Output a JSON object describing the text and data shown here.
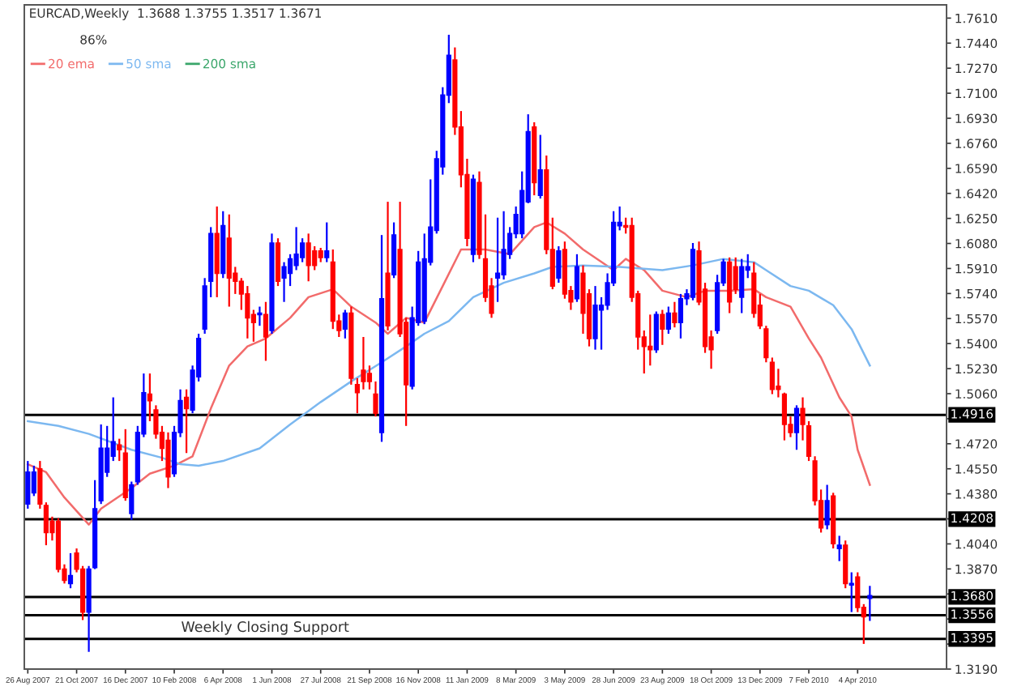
{
  "chart_data": {
    "type": "candlestick",
    "annotations": [
      "EURCAD,Weekly  1.3688 1.3755 1.3517 1.3671",
      "86%",
      "Weekly Closing Support"
    ],
    "x": [
      "2007-08-26",
      "2007-09-02",
      "2007-09-09",
      "2007-09-16",
      "2007-09-23",
      "2007-09-30",
      "2007-10-07",
      "2007-10-14",
      "2007-10-21",
      "2007-10-28",
      "2007-11-04",
      "2007-11-11",
      "2007-11-18",
      "2007-11-25",
      "2007-12-02",
      "2007-12-09",
      "2007-12-16",
      "2007-12-23",
      "2007-12-30",
      "2008-01-06",
      "2008-01-13",
      "2008-01-20",
      "2008-01-27",
      "2008-02-03",
      "2008-02-10",
      "2008-02-17",
      "2008-02-24",
      "2008-03-02",
      "2008-03-09",
      "2008-03-16",
      "2008-03-23",
      "2008-03-30",
      "2008-04-06",
      "2008-04-13",
      "2008-04-20",
      "2008-04-27",
      "2008-05-04",
      "2008-05-11",
      "2008-05-18",
      "2008-05-25",
      "2008-06-01",
      "2008-06-08",
      "2008-06-15",
      "2008-06-22",
      "2008-06-29",
      "2008-07-06",
      "2008-07-13",
      "2008-07-20",
      "2008-07-27",
      "2008-08-03",
      "2008-08-10",
      "2008-08-17",
      "2008-08-24",
      "2008-08-31",
      "2008-09-07",
      "2008-09-14",
      "2008-09-21",
      "2008-09-28",
      "2008-10-05",
      "2008-10-12",
      "2008-10-19",
      "2008-10-26",
      "2008-11-02",
      "2008-11-09",
      "2008-11-16",
      "2008-11-23",
      "2008-11-30",
      "2008-12-07",
      "2008-12-14",
      "2008-12-21",
      "2008-12-28",
      "2009-01-04",
      "2009-01-11",
      "2009-01-18",
      "2009-01-25",
      "2009-02-01",
      "2009-02-08",
      "2009-02-15",
      "2009-02-22",
      "2009-03-01",
      "2009-03-08",
      "2009-03-15",
      "2009-03-22",
      "2009-03-29",
      "2009-04-05",
      "2009-04-12",
      "2009-04-19",
      "2009-04-26",
      "2009-05-03",
      "2009-05-10",
      "2009-05-17",
      "2009-05-24",
      "2009-05-31",
      "2009-06-07",
      "2009-06-14",
      "2009-06-21",
      "2009-06-28",
      "2009-07-05",
      "2009-07-12",
      "2009-07-19",
      "2009-07-26",
      "2009-08-02",
      "2009-08-09",
      "2009-08-16",
      "2009-08-23",
      "2009-08-30",
      "2009-09-06",
      "2009-09-13",
      "2009-09-20",
      "2009-09-27",
      "2009-10-04",
      "2009-10-11",
      "2009-10-18",
      "2009-10-25",
      "2009-11-01",
      "2009-11-08",
      "2009-11-15",
      "2009-11-22",
      "2009-11-29",
      "2009-12-06",
      "2009-12-13",
      "2009-12-20",
      "2009-12-27",
      "2010-01-03",
      "2010-01-10",
      "2010-01-17",
      "2010-01-24",
      "2010-01-31",
      "2010-02-07",
      "2010-02-14",
      "2010-02-21",
      "2010-02-28",
      "2010-03-07",
      "2010-03-14",
      "2010-03-21",
      "2010-03-28",
      "2010-04-04",
      "2010-04-11",
      "2010-04-18"
    ],
    "ohlc": [
      [
        1.4311,
        1.4603,
        1.4279,
        1.4527
      ],
      [
        1.4387,
        1.4571,
        1.4365,
        1.4527
      ],
      [
        1.4549,
        1.4603,
        1.4279,
        1.4311
      ],
      [
        1.4301,
        1.4322,
        1.4031,
        1.4117
      ],
      [
        1.4193,
        1.4225,
        1.4063,
        1.4117
      ],
      [
        1.4193,
        1.4215,
        1.3847,
        1.3869
      ],
      [
        1.3869,
        1.3901,
        1.3771,
        1.3793
      ],
      [
        1.3771,
        1.3977,
        1.3739,
        1.3825
      ],
      [
        1.3977,
        1.4009,
        1.3847,
        1.3869
      ],
      [
        1.3869,
        1.389,
        1.3523,
        1.3577
      ],
      [
        1.3577,
        1.389,
        1.3307,
        1.3869
      ],
      [
        1.3879,
        1.4473,
        1.3869,
        1.4279
      ],
      [
        1.4333,
        1.4851,
        1.4311,
        1.4689
      ],
      [
        1.4527,
        1.4841,
        1.4495,
        1.4689
      ],
      [
        1.4635,
        1.5035,
        1.4603,
        1.4733
      ],
      [
        1.4711,
        1.4754,
        1.4603,
        1.4679
      ],
      [
        1.4657,
        1.4819,
        1.4333,
        1.4355
      ],
      [
        1.4247,
        1.4463,
        1.4203,
        1.4441
      ],
      [
        1.4463,
        1.4841,
        1.4441,
        1.4797
      ],
      [
        1.4787,
        1.5197,
        1.4765,
        1.5067
      ],
      [
        1.5057,
        1.5197,
        1.4873,
        1.5013
      ],
      [
        1.4949,
        1.4981,
        1.4754,
        1.4787
      ],
      [
        1.4797,
        1.4841,
        1.4603,
        1.4689
      ],
      [
        1.4743,
        1.4797,
        1.4419,
        1.4495
      ],
      [
        1.4517,
        1.4841,
        1.4495,
        1.4797
      ],
      [
        1.4797,
        1.5089,
        1.4765,
        1.5013
      ],
      [
        1.5035,
        1.5089,
        1.4657,
        1.4959
      ],
      [
        1.4949,
        1.5251,
        1.4927,
        1.5219
      ],
      [
        1.5175,
        1.5467,
        1.5143,
        1.5435
      ],
      [
        1.5499,
        1.5845,
        1.5467,
        1.5791
      ],
      [
        1.5823,
        1.6191,
        1.5715,
        1.6147
      ],
      [
        1.6147,
        1.6331,
        1.5715,
        1.5877
      ],
      [
        1.5877,
        1.6299,
        1.5845,
        1.6201
      ],
      [
        1.6115,
        1.6277,
        1.5651,
        1.5845
      ],
      [
        1.5877,
        1.5921,
        1.5737,
        1.5823
      ],
      [
        1.5823,
        1.5845,
        1.5629,
        1.5737
      ],
      [
        1.5737,
        1.5791,
        1.5435,
        1.5575
      ],
      [
        1.5597,
        1.5629,
        1.5413,
        1.5543
      ],
      [
        1.5597,
        1.5651,
        1.5521,
        1.5607
      ],
      [
        1.5597,
        1.5683,
        1.5283,
        1.5445
      ],
      [
        1.5489,
        1.6147,
        1.5467,
        1.6083
      ],
      [
        1.6083,
        1.6115,
        1.5791,
        1.5823
      ],
      [
        1.5845,
        1.5953,
        1.5683,
        1.5921
      ],
      [
        1.5877,
        1.6007,
        1.5791,
        1.5975
      ],
      [
        1.5931,
        1.6191,
        1.5899,
        1.6007
      ],
      [
        1.5985,
        1.6115,
        1.5953,
        1.6083
      ],
      [
        1.6083,
        1.6147,
        1.5823,
        1.5931
      ],
      [
        1.6029,
        1.6061,
        1.5899,
        1.5931
      ],
      [
        1.6029,
        1.605,
        1.5953,
        1.5985
      ],
      [
        1.5985,
        1.6223,
        1.5953,
        1.6029
      ],
      [
        1.5953,
        1.6039,
        1.5499,
        1.5553
      ],
      [
        1.5553,
        1.5597,
        1.5445,
        1.5489
      ],
      [
        1.5499,
        1.5629,
        1.5435,
        1.5607
      ],
      [
        1.5607,
        1.5651,
        1.5121,
        1.5165
      ],
      [
        1.5121,
        1.5165,
        1.4927,
        1.5067
      ],
      [
        1.5219,
        1.5445,
        1.5089,
        1.5143
      ],
      [
        1.5197,
        1.5251,
        1.5089,
        1.5143
      ],
      [
        1.5057,
        1.5143,
        1.4905,
        1.4927
      ],
      [
        1.4797,
        1.6137,
        1.4733,
        1.5705
      ],
      [
        1.5877,
        1.6363,
        1.5489,
        1.5521
      ],
      [
        1.5867,
        1.6223,
        1.5845,
        1.6137
      ],
      [
        1.6039,
        1.6363,
        1.5445,
        1.5467
      ],
      [
        1.5543,
        1.5575,
        1.4841,
        1.5121
      ],
      [
        1.5111,
        1.5651,
        1.5089,
        1.5575
      ],
      [
        1.5543,
        1.6029,
        1.5521,
        1.5953
      ],
      [
        1.5553,
        1.6147,
        1.5532,
        1.5975
      ],
      [
        1.5953,
        1.6515,
        1.5931,
        1.6191
      ],
      [
        1.6169,
        1.6709,
        1.6147,
        1.6655
      ],
      [
        1.6601,
        1.7141,
        1.6547,
        1.7087
      ],
      [
        1.7087,
        1.7497,
        1.7033,
        1.7357
      ],
      [
        1.7325,
        1.7411,
        1.6817,
        1.6871
      ],
      [
        1.6871,
        1.6979,
        1.6461,
        1.6547
      ],
      [
        1.6547,
        1.6655,
        1.6061,
        1.6115
      ],
      [
        1.6007,
        1.6547,
        1.5953,
        1.6515
      ],
      [
        1.6493,
        1.6569,
        1.5975,
        1.6007
      ],
      [
        1.5975,
        1.6277,
        1.5683,
        1.5715
      ],
      [
        1.5791,
        1.5845,
        1.5575,
        1.5607
      ],
      [
        1.5845,
        1.6255,
        1.5683,
        1.5877
      ],
      [
        1.5867,
        1.6299,
        1.5835,
        1.6039
      ],
      [
        1.6007,
        1.6191,
        1.5975,
        1.6147
      ],
      [
        1.6147,
        1.6331,
        1.6115,
        1.6277
      ],
      [
        1.6147,
        1.6569,
        1.6115,
        1.6439
      ],
      [
        1.6363,
        1.6957,
        1.6353,
        1.6839
      ],
      [
        1.6871,
        1.6903,
        1.6407,
        1.6493
      ],
      [
        1.6407,
        1.6817,
        1.6385,
        1.6579
      ],
      [
        1.6579,
        1.6677,
        1.6007,
        1.6039
      ],
      [
        1.6039,
        1.6255,
        1.5769,
        1.5791
      ],
      [
        1.5845,
        1.6061,
        1.5813,
        1.6029
      ],
      [
        1.6039,
        1.6093,
        1.5705,
        1.5737
      ],
      [
        1.5759,
        1.5791,
        1.5629,
        1.5683
      ],
      [
        1.5705,
        1.6007,
        1.5683,
        1.5921
      ],
      [
        1.5877,
        1.5931,
        1.5467,
        1.5607
      ],
      [
        1.5737,
        1.5769,
        1.5381,
        1.5435
      ],
      [
        1.5435,
        1.5791,
        1.5359,
        1.5661
      ],
      [
        1.5629,
        1.5715,
        1.5359,
        1.5661
      ],
      [
        1.5661,
        1.5877,
        1.5629,
        1.5813
      ],
      [
        1.5813,
        1.6299,
        1.5791,
        1.6223
      ],
      [
        1.6201,
        1.6331,
        1.6169,
        1.6223
      ],
      [
        1.6201,
        1.6255,
        1.6147,
        1.6191
      ],
      [
        1.6201,
        1.6255,
        1.5683,
        1.5715
      ],
      [
        1.5737,
        1.5759,
        1.5359,
        1.5445
      ],
      [
        1.5445,
        1.5489,
        1.5197,
        1.5381
      ],
      [
        1.5381,
        1.5597,
        1.5251,
        1.5359
      ],
      [
        1.5359,
        1.5618,
        1.5337,
        1.5597
      ],
      [
        1.5597,
        1.5629,
        1.5391,
        1.5499
      ],
      [
        1.5499,
        1.5651,
        1.5467,
        1.5607
      ],
      [
        1.5607,
        1.5683,
        1.551,
        1.5543
      ],
      [
        1.5543,
        1.5737,
        1.5435,
        1.5705
      ],
      [
        1.5705,
        1.5769,
        1.5661,
        1.5737
      ],
      [
        1.5715,
        1.6083,
        1.5694,
        1.6039
      ],
      [
        1.6029,
        1.6093,
        1.5661,
        1.5683
      ],
      [
        1.5769,
        1.5813,
        1.5337,
        1.5381
      ],
      [
        1.5445,
        1.5489,
        1.5229,
        1.5359
      ],
      [
        1.5489,
        1.5867,
        1.5467,
        1.5813
      ],
      [
        1.5813,
        1.5975,
        1.5791,
        1.5953
      ],
      [
        1.5953,
        1.5985,
        1.5607,
        1.5683
      ],
      [
        1.5921,
        1.5985,
        1.5737,
        1.5769
      ],
      [
        1.5715,
        1.5975,
        1.5607,
        1.5921
      ],
      [
        1.5899,
        1.6007,
        1.5845,
        1.5921
      ],
      [
        1.5877,
        1.5953,
        1.5575,
        1.5607
      ],
      [
        1.5661,
        1.5737,
        1.5499,
        1.5521
      ],
      [
        1.5499,
        1.5521,
        1.5273,
        1.5305
      ],
      [
        1.5273,
        1.5305,
        1.5057,
        1.5089
      ],
      [
        1.5111,
        1.5229,
        1.5035,
        1.5089
      ],
      [
        1.5057,
        1.5067,
        1.4743,
        1.4851
      ],
      [
        1.4851,
        1.4905,
        1.4765,
        1.4797
      ],
      [
        1.4797,
        1.4981,
        1.4679,
        1.4959
      ],
      [
        1.4959,
        1.5035,
        1.4743,
        1.4851
      ],
      [
        1.4841,
        1.4873,
        1.4603,
        1.4635
      ],
      [
        1.4603,
        1.4635,
        1.4301,
        1.4333
      ],
      [
        1.4333,
        1.4409,
        1.4117,
        1.4149
      ],
      [
        1.4171,
        1.4441,
        1.4139,
        1.4333
      ],
      [
        1.4365,
        1.4387,
        1.4009,
        1.4041
      ],
      [
        1.4009,
        1.4095,
        1.3923,
        1.4031
      ],
      [
        1.4031,
        1.4063,
        1.3739,
        1.3771
      ],
      [
        1.3761,
        1.3847,
        1.3577,
        1.3771
      ],
      [
        1.3815,
        1.3847,
        1.3577,
        1.3609
      ],
      [
        1.3609,
        1.3631,
        1.3361,
        1.3545
      ],
      [
        1.3688,
        1.3755,
        1.3517,
        1.3671
      ]
    ],
    "colors": [
      "#0000ff",
      "#0000ff",
      "#ff0000",
      "#ff0000",
      "#ff0000",
      "#ff0000",
      "#ff0000",
      "#0000ff",
      "#ff0000",
      "#ff0000",
      "#0000ff",
      "#0000ff",
      "#0000ff",
      "#0000ff",
      "#0000ff",
      "#ff0000",
      "#ff0000",
      "#0000ff",
      "#0000ff",
      "#0000ff",
      "#ff0000",
      "#ff0000",
      "#ff0000",
      "#ff0000",
      "#0000ff",
      "#0000ff",
      "#ff0000",
      "#0000ff",
      "#0000ff",
      "#0000ff",
      "#0000ff",
      "#ff0000",
      "#0000ff",
      "#ff0000",
      "#ff0000",
      "#ff0000",
      "#ff0000",
      "#ff0000",
      "#0000ff",
      "#ff0000",
      "#0000ff",
      "#ff0000",
      "#0000ff",
      "#0000ff",
      "#0000ff",
      "#0000ff",
      "#ff0000",
      "#ff0000",
      "#ff0000",
      "#0000ff",
      "#ff0000",
      "#ff0000",
      "#0000ff",
      "#ff0000",
      "#ff0000",
      "#ff0000",
      "#ff0000",
      "#ff0000",
      "#0000ff",
      "#ff0000",
      "#0000ff",
      "#ff0000",
      "#ff0000",
      "#0000ff",
      "#0000ff",
      "#0000ff",
      "#0000ff",
      "#0000ff",
      "#0000ff",
      "#0000ff",
      "#ff0000",
      "#ff0000",
      "#ff0000",
      "#0000ff",
      "#ff0000",
      "#ff0000",
      "#ff0000",
      "#0000ff",
      "#0000ff",
      "#0000ff",
      "#0000ff",
      "#0000ff",
      "#0000ff",
      "#ff0000",
      "#0000ff",
      "#ff0000",
      "#ff0000",
      "#0000ff",
      "#ff0000",
      "#ff0000",
      "#0000ff",
      "#ff0000",
      "#ff0000",
      "#0000ff",
      "#0000ff",
      "#0000ff",
      "#0000ff",
      "#0000ff",
      "#ff0000",
      "#ff0000",
      "#ff0000",
      "#ff0000",
      "#ff0000",
      "#0000ff",
      "#ff0000",
      "#0000ff",
      "#ff0000",
      "#0000ff",
      "#0000ff",
      "#0000ff",
      "#ff0000",
      "#ff0000",
      "#ff0000",
      "#0000ff",
      "#0000ff",
      "#ff0000",
      "#ff0000",
      "#0000ff",
      "#0000ff",
      "#ff0000",
      "#ff0000",
      "#ff0000",
      "#ff0000",
      "#ff0000",
      "#ff0000",
      "#ff0000",
      "#0000ff",
      "#ff0000",
      "#ff0000",
      "#ff0000",
      "#ff0000",
      "#0000ff",
      "#ff0000",
      "#0000ff",
      "#ff0000",
      "#0000ff",
      "#ff0000",
      "#ff0000",
      "#0000ff"
    ],
    "series": [
      {
        "name": "20 ema",
        "type": "line",
        "color": "#f26b6b",
        "x": [
          "2007-08-26",
          "2007-09-16",
          "2007-10-07",
          "2007-11-04",
          "2007-11-18",
          "2007-12-23",
          "2008-01-13",
          "2008-02-10",
          "2008-03-02",
          "2008-03-23",
          "2008-04-13",
          "2008-05-04",
          "2008-05-25",
          "2008-06-22",
          "2008-07-13",
          "2008-08-10",
          "2008-08-31",
          "2008-09-28",
          "2008-10-12",
          "2008-11-02",
          "2008-11-23",
          "2008-12-14",
          "2009-01-04",
          "2009-02-01",
          "2009-03-01",
          "2009-03-29",
          "2009-04-12",
          "2009-05-03",
          "2009-05-24",
          "2009-06-28",
          "2009-07-12",
          "2009-08-02",
          "2009-08-23",
          "2009-09-20",
          "2009-10-11",
          "2009-11-08",
          "2009-12-06",
          "2009-12-20",
          "2010-01-17",
          "2010-02-07",
          "2010-02-21",
          "2010-03-14",
          "2010-03-28",
          "2010-04-04",
          "2010-04-18"
        ],
        "values": [
          1.4581,
          1.4527,
          1.4355,
          1.4171,
          1.4279,
          1.4419,
          1.4517,
          1.4571,
          1.4635,
          1.4959,
          1.5251,
          1.5381,
          1.5435,
          1.5575,
          1.5715,
          1.5769,
          1.5651,
          1.5543,
          1.5467,
          1.5575,
          1.5543,
          1.5791,
          1.6039,
          1.6039,
          1.6007,
          1.6191,
          1.6223,
          1.6147,
          1.6039,
          1.5899,
          1.5975,
          1.5899,
          1.5759,
          1.5715,
          1.5759,
          1.5759,
          1.5769,
          1.5715,
          1.5651,
          1.5435,
          1.5305,
          1.5035,
          1.4905,
          1.4679,
          1.4441
        ]
      },
      {
        "name": "50 sma",
        "type": "line",
        "color": "#7cb8f0",
        "x": [
          "2007-08-26",
          "2007-09-30",
          "2007-11-04",
          "2007-12-23",
          "2008-01-27",
          "2008-02-17",
          "2008-03-09",
          "2008-04-06",
          "2008-05-18",
          "2008-06-22",
          "2008-07-27",
          "2008-08-31",
          "2008-10-05",
          "2008-11-02",
          "2008-11-23",
          "2008-12-21",
          "2009-01-18",
          "2009-02-22",
          "2009-03-29",
          "2009-04-19",
          "2009-05-24",
          "2009-07-05",
          "2009-08-23",
          "2009-09-27",
          "2009-11-01",
          "2009-12-06",
          "2009-12-20",
          "2010-01-17",
          "2010-02-07",
          "2010-03-07",
          "2010-03-28",
          "2010-04-18"
        ],
        "values": [
          1.4873,
          1.4841,
          1.4787,
          1.4679,
          1.4625,
          1.4581,
          1.4571,
          1.4603,
          1.4689,
          1.4851,
          1.5003,
          1.5143,
          1.5273,
          1.5381,
          1.5467,
          1.5553,
          1.5715,
          1.5813,
          1.5877,
          1.5921,
          1.5931,
          1.5921,
          1.5899,
          1.5931,
          1.5975,
          1.5953,
          1.5899,
          1.5791,
          1.5759,
          1.5661,
          1.5499,
          1.5251
        ]
      },
      {
        "name": "200 sma",
        "type": "line",
        "color": "#3aa66a",
        "values": [
          null,
          null,
          null,
          null,
          null,
          null,
          null,
          null,
          null,
          null,
          null,
          null,
          null,
          null,
          null,
          null,
          null,
          null,
          null,
          null,
          null,
          null,
          null,
          null,
          null,
          null,
          null,
          null,
          null,
          null,
          null,
          null,
          null,
          null,
          null,
          null,
          null,
          null,
          null,
          null,
          null,
          null,
          null,
          null,
          null,
          null,
          null,
          null,
          null,
          null,
          null,
          null,
          null,
          null,
          null,
          null,
          null,
          null,
          null,
          null,
          null,
          null,
          null,
          null,
          null,
          null,
          null,
          null,
          null,
          null,
          null,
          null,
          null,
          null,
          null,
          null,
          null,
          null,
          null,
          null,
          null,
          null,
          null,
          null,
          null,
          null,
          null,
          null,
          null,
          null,
          null,
          null,
          null,
          null,
          null,
          null,
          null,
          null,
          null,
          null,
          null,
          null,
          null,
          null,
          null,
          null,
          null,
          null,
          null,
          null,
          null,
          null,
          null,
          null,
          null,
          null,
          null,
          null,
          null,
          null,
          null,
          null,
          null,
          null,
          null,
          null,
          null,
          null,
          null,
          null,
          null,
          null,
          null,
          null,
          null,
          null,
          null,
          null,
          null
        ]
      }
    ],
    "ref_lines": [
      {
        "axis": "y",
        "value": 1.4916,
        "label": "1.4916",
        "color": "#000000"
      },
      {
        "axis": "y",
        "value": 1.4208,
        "label": "1.4208",
        "color": "#000000"
      },
      {
        "axis": "y",
        "value": 1.368,
        "label": "1.3680",
        "color": "#000000"
      },
      {
        "axis": "y",
        "value": 1.3556,
        "label": "1.3556",
        "color": "#000000"
      },
      {
        "axis": "y",
        "value": 1.3395,
        "label": "1.3395",
        "color": "#000000"
      }
    ],
    "xlim": [
      "2007-08-22",
      "2010-07-15"
    ],
    "xticks": [
      {
        "value": "2007-08-26",
        "label": "26 Aug 2007"
      },
      {
        "value": "2007-10-21",
        "label": "21 Oct 2007"
      },
      {
        "value": "2007-12-16",
        "label": "16 Dec 2007"
      },
      {
        "value": "2008-02-10",
        "label": "10 Feb 2008"
      },
      {
        "value": "2008-04-06",
        "label": "6 Apr 2008"
      },
      {
        "value": "2008-06-01",
        "label": "1 Jun 2008"
      },
      {
        "value": "2008-07-27",
        "label": "27 Jul 2008"
      },
      {
        "value": "2008-09-21",
        "label": "21 Sep 2008"
      },
      {
        "value": "2008-11-16",
        "label": "16 Nov 2008"
      },
      {
        "value": "2009-01-11",
        "label": "11 Jan 2009"
      },
      {
        "value": "2009-03-08",
        "label": "8 Mar 2009"
      },
      {
        "value": "2009-05-03",
        "label": "3 May 2009"
      },
      {
        "value": "2009-06-28",
        "label": "28 Jun 2009"
      },
      {
        "value": "2009-08-23",
        "label": "23 Aug 2009"
      },
      {
        "value": "2009-10-18",
        "label": "18 Oct 2009"
      },
      {
        "value": "2009-12-13",
        "label": "13 Dec 2009"
      },
      {
        "value": "2010-02-07",
        "label": "7 Feb 2010"
      },
      {
        "value": "2010-04-04",
        "label": "4 Apr 2010"
      }
    ],
    "ylim": [
      1.319,
      1.77
    ],
    "yticks": [
      {
        "value": 1.761,
        "label": "1.7610"
      },
      {
        "value": 1.744,
        "label": "1.7440"
      },
      {
        "value": 1.727,
        "label": "1.7270"
      },
      {
        "value": 1.71,
        "label": "1.7100"
      },
      {
        "value": 1.693,
        "label": "1.6930"
      },
      {
        "value": 1.676,
        "label": "1.6760"
      },
      {
        "value": 1.659,
        "label": "1.6590"
      },
      {
        "value": 1.642,
        "label": "1.6420"
      },
      {
        "value": 1.625,
        "label": "1.6250"
      },
      {
        "value": 1.608,
        "label": "1.6080"
      },
      {
        "value": 1.591,
        "label": "1.5910"
      },
      {
        "value": 1.574,
        "label": "1.5740"
      },
      {
        "value": 1.557,
        "label": "1.5570"
      },
      {
        "value": 1.54,
        "label": "1.5400"
      },
      {
        "value": 1.523,
        "label": "1.5230"
      },
      {
        "value": 1.506,
        "label": "1.5060"
      },
      {
        "value": 1.489,
        "label": null
      },
      {
        "value": 1.472,
        "label": "1.4720"
      },
      {
        "value": 1.455,
        "label": "1.4550"
      },
      {
        "value": 1.438,
        "label": "1.4380"
      },
      {
        "value": 1.421,
        "label": null
      },
      {
        "value": 1.404,
        "label": "1.4040"
      },
      {
        "value": 1.387,
        "label": "1.3870"
      },
      {
        "value": 1.37,
        "label": null
      },
      {
        "value": 1.353,
        "label": null
      },
      {
        "value": 1.336,
        "label": null
      },
      {
        "value": 1.319,
        "label": "1.3190"
      }
    ],
    "legend": "top left",
    "grid": false
  }
}
